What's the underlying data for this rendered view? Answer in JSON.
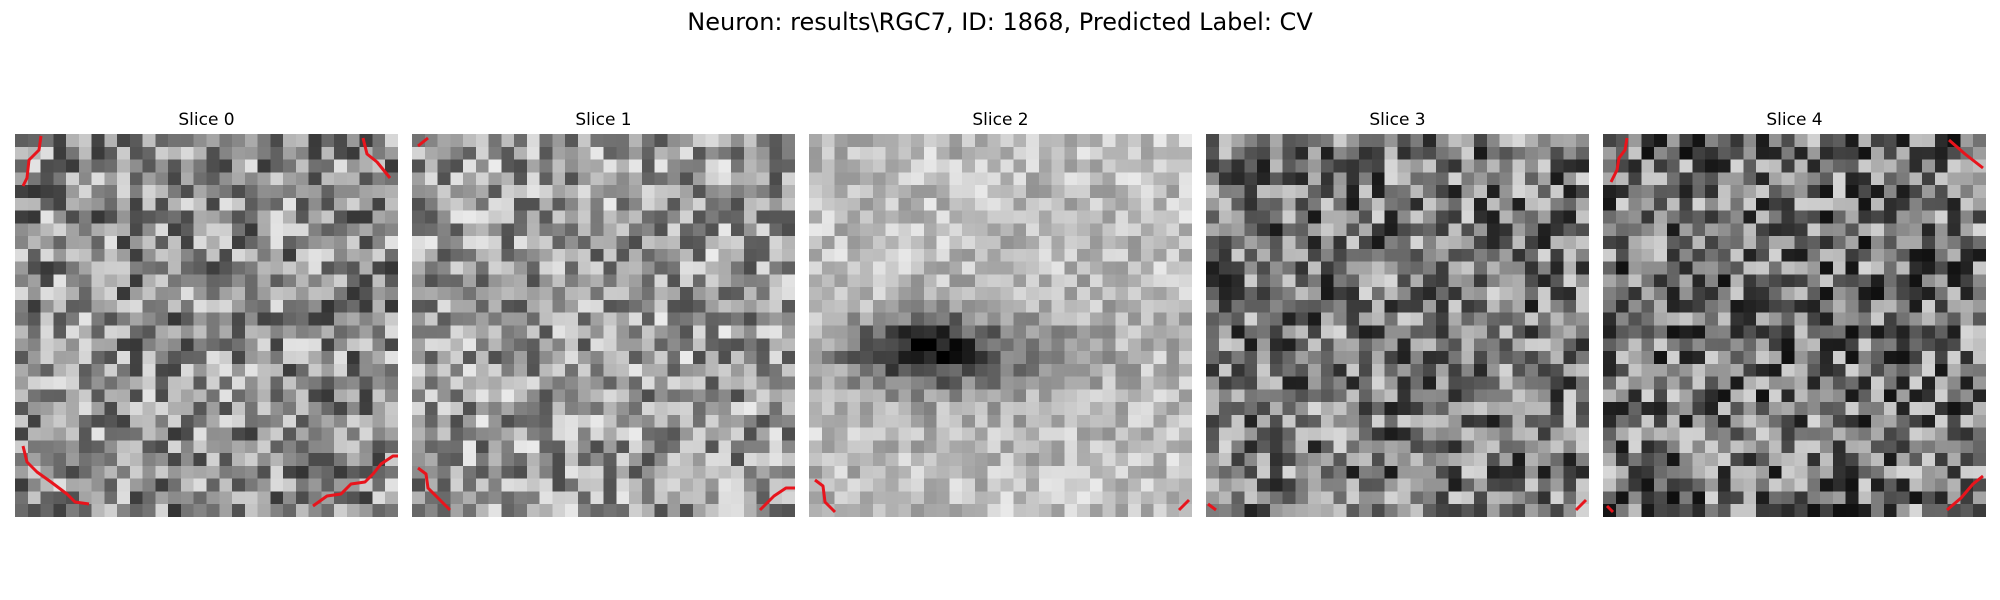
{
  "figure": {
    "title": "Neuron: results\\RGC7, ID: 1868, Predicted Label: CV"
  },
  "slices": [
    {
      "label": "Slice 0"
    },
    {
      "label": "Slice 1"
    },
    {
      "label": "Slice 2"
    },
    {
      "label": "Slice 3"
    },
    {
      "label": "Slice 4"
    }
  ],
  "colors": {
    "contour": "#e8141c",
    "background": "#ffffff",
    "colormap": "gray"
  }
}
